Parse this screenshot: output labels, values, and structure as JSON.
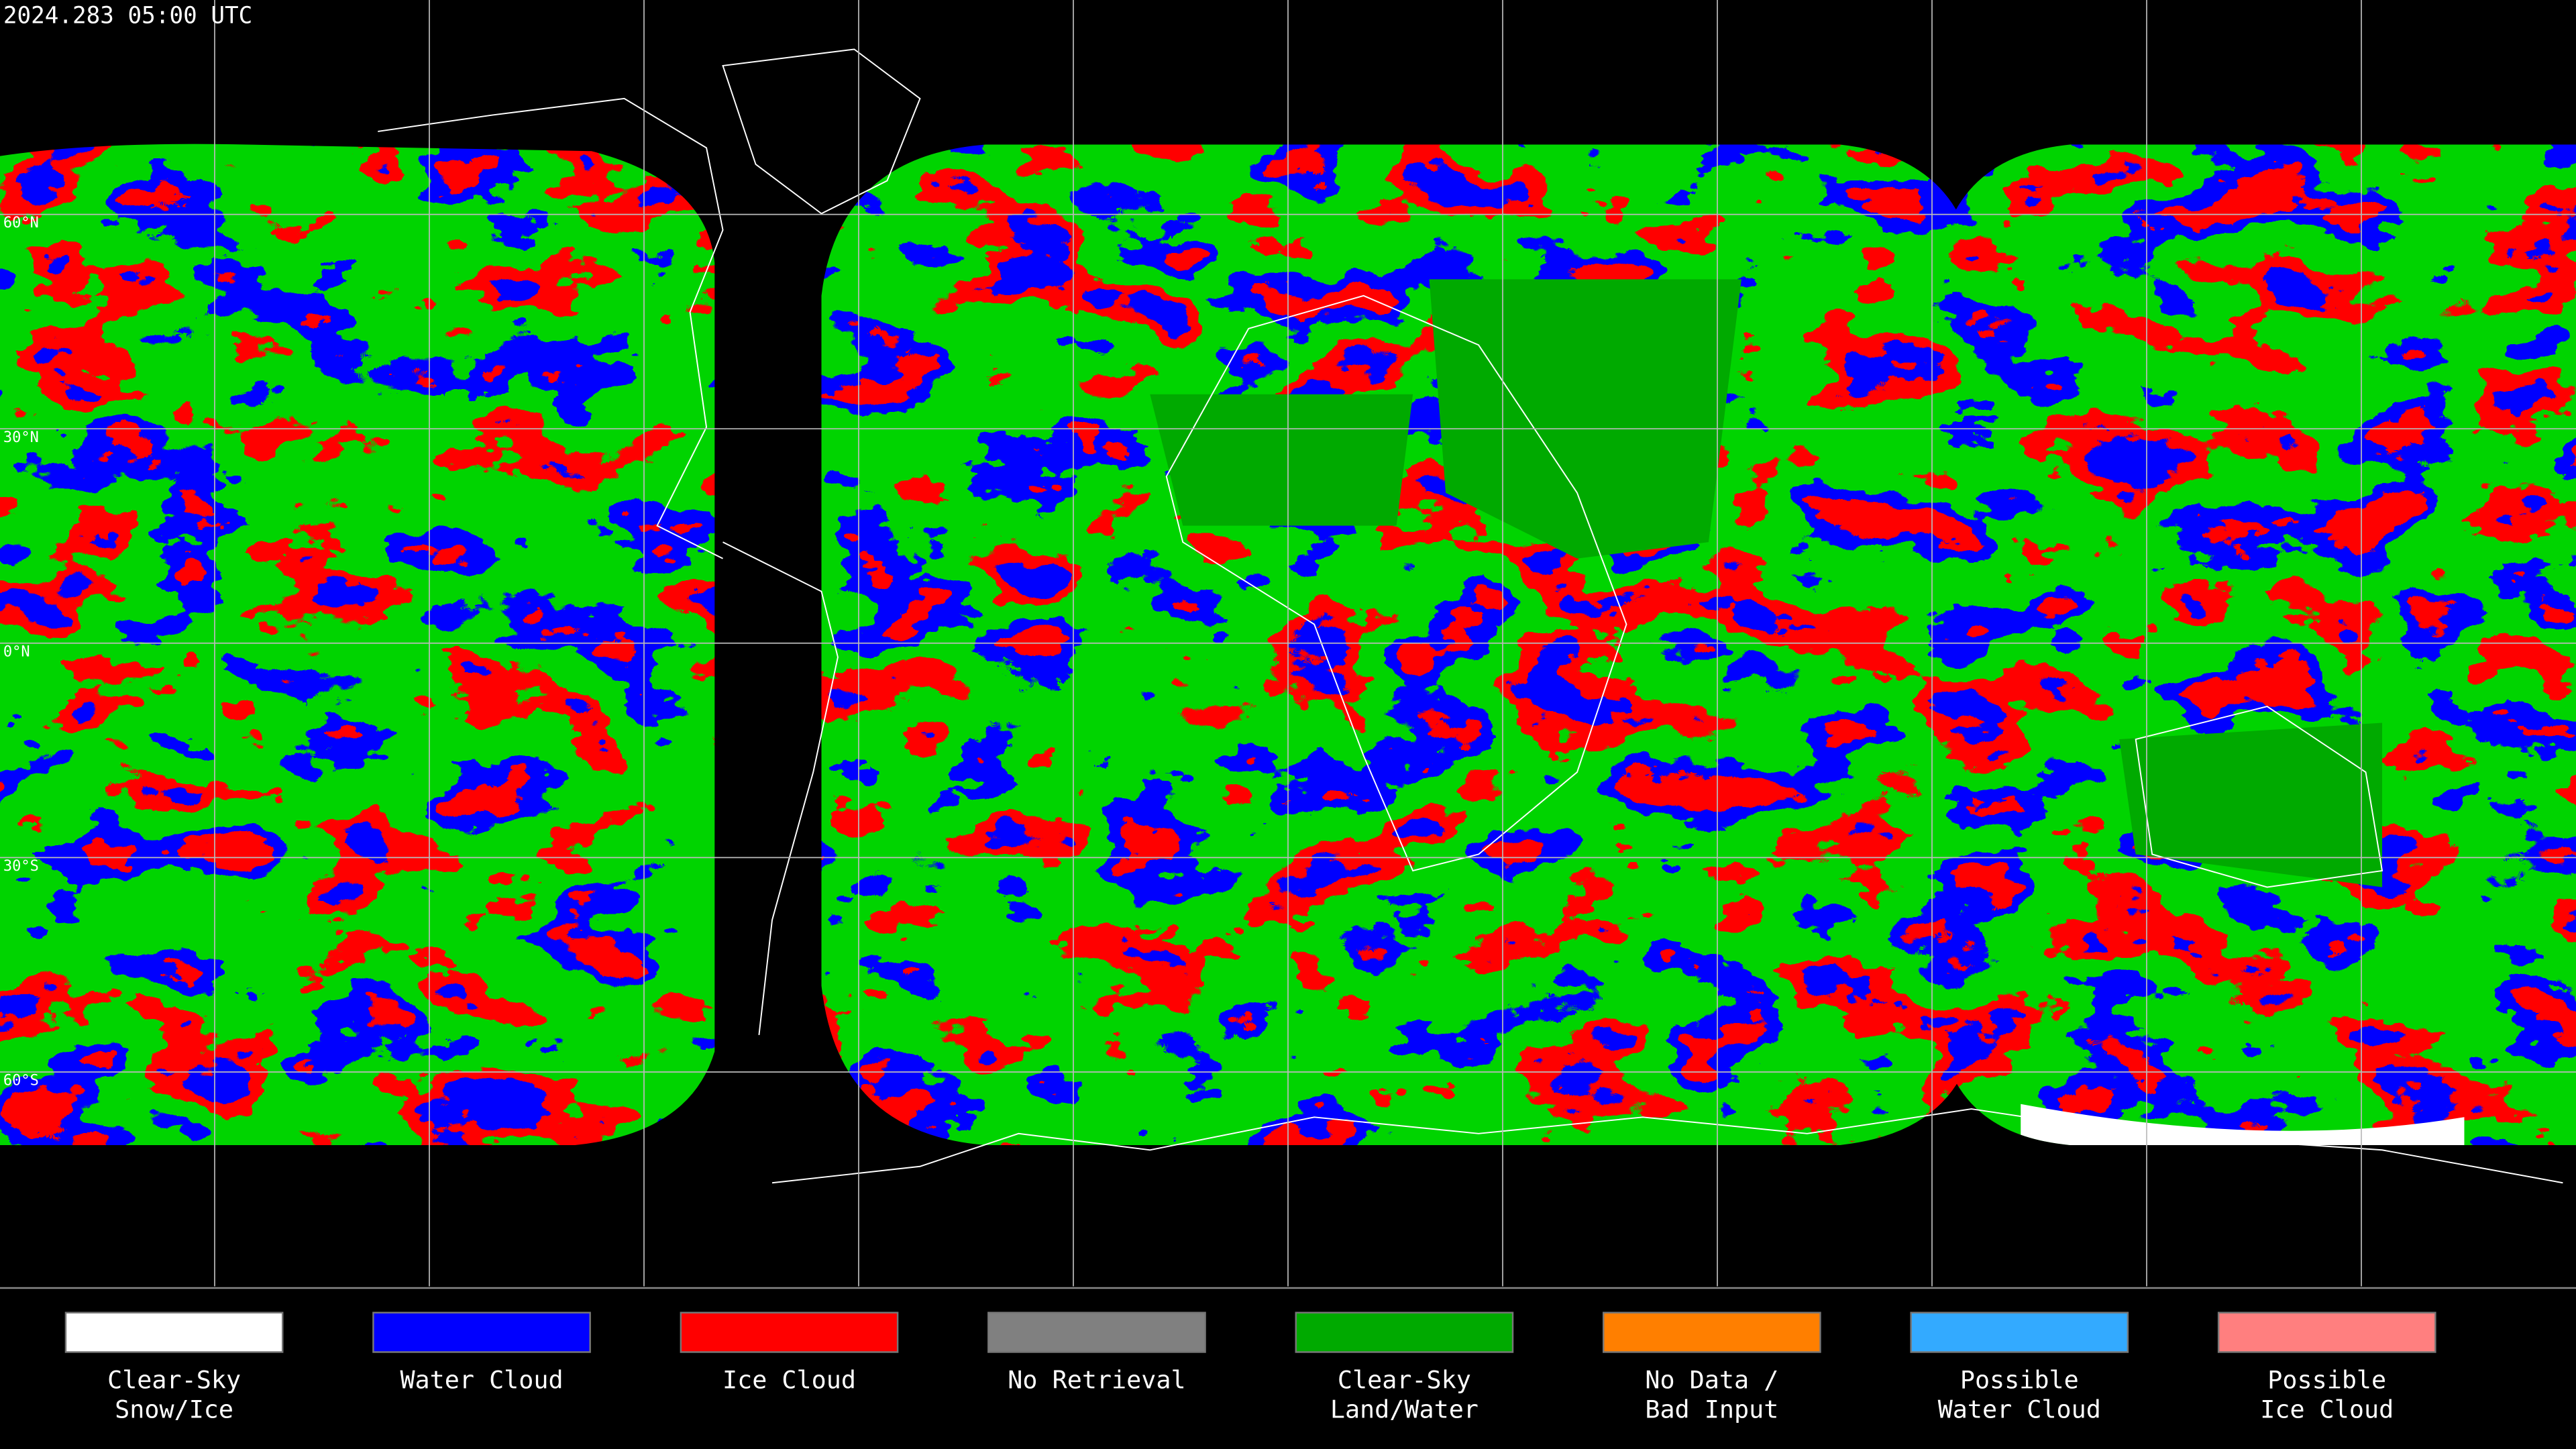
{
  "title": "2024.283 05:00 UTC",
  "latitude_labels": [
    "60°N",
    "30°N",
    "0°N",
    "30°S",
    "60°S"
  ],
  "legend": [
    {
      "label": [
        "Clear-Sky",
        "Snow/Ice"
      ],
      "color": "#ffffff"
    },
    {
      "label": [
        "Water Cloud"
      ],
      "color": "#0000ff"
    },
    {
      "label": [
        "Ice Cloud"
      ],
      "color": "#ff0000"
    },
    {
      "label": [
        "No Retrieval"
      ],
      "color": "#808080"
    },
    {
      "label": [
        "Clear-Sky",
        "Land/Water"
      ],
      "color": "#00aa00"
    },
    {
      "label": [
        "No Data /",
        "Bad Input"
      ],
      "color": "#ff7f00"
    },
    {
      "label": [
        "Possible",
        "Water Cloud"
      ],
      "color": "#33aaff"
    },
    {
      "label": [
        "Possible",
        "Ice Cloud"
      ],
      "color": "#ff7f7f"
    }
  ]
}
